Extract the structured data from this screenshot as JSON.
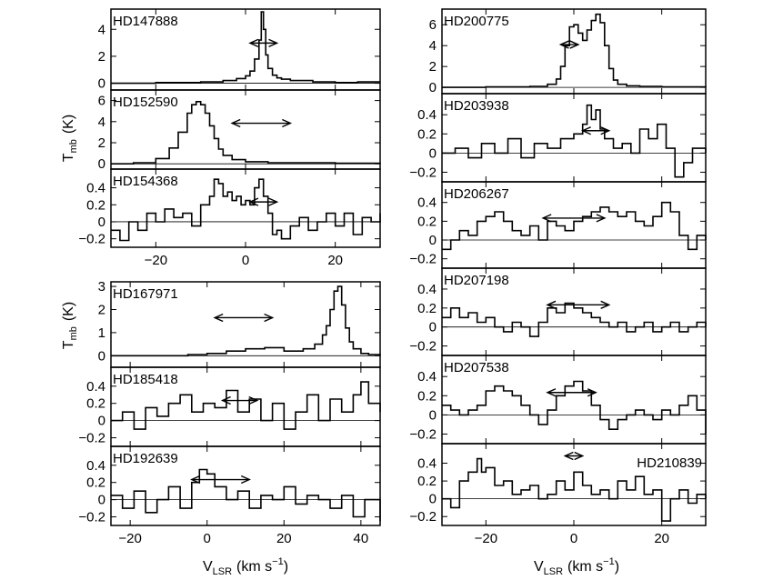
{
  "figure": {
    "left_ylabel_main": "T",
    "left_ylabel_sub": "mb",
    "left_ylabel_unit": "(K)",
    "xlabel_main": "V",
    "xlabel_sub": "LSR",
    "xlabel_unit_pre": "(km s",
    "xlabel_unit_exp": "−1",
    "xlabel_unit_post": ")"
  },
  "chart_data": [
    {
      "type": "line",
      "name": "HD147888",
      "xlim": [
        -30,
        30
      ],
      "ylim": [
        -0.5,
        5.5
      ],
      "yticks": [
        0,
        2,
        4
      ],
      "arrow": [
        1.0,
        7.0
      ],
      "x": [
        -30,
        -20,
        -10,
        -5,
        -2,
        0,
        1,
        2,
        3,
        3.5,
        4,
        4.5,
        5,
        6,
        7,
        8,
        10,
        15,
        20,
        25,
        30
      ],
      "values": [
        0.0,
        0.05,
        0.1,
        0.2,
        0.35,
        0.55,
        0.9,
        1.8,
        3.2,
        5.3,
        4.0,
        2.1,
        1.1,
        0.6,
        0.4,
        0.3,
        0.2,
        0.1,
        0.05,
        0.1,
        0.1
      ]
    },
    {
      "type": "line",
      "name": "HD152590",
      "xlim": [
        -30,
        30
      ],
      "ylim": [
        -0.5,
        7.0
      ],
      "yticks": [
        0,
        2,
        4,
        6
      ],
      "arrow": [
        -3.0,
        10.0
      ],
      "x": [
        -30,
        -25,
        -20,
        -17,
        -15,
        -13,
        -12,
        -11,
        -10,
        -9,
        -8,
        -7,
        -6,
        -5,
        -3,
        0,
        5,
        10,
        20,
        30
      ],
      "values": [
        0.0,
        0.1,
        0.5,
        1.5,
        3.0,
        4.8,
        5.6,
        5.9,
        5.6,
        4.8,
        3.6,
        2.4,
        1.4,
        0.8,
        0.4,
        0.2,
        0.1,
        0.1,
        0.05,
        0.1
      ]
    },
    {
      "type": "line",
      "name": "HD154368",
      "xlim": [
        -30,
        30
      ],
      "ylim": [
        -0.3,
        0.62
      ],
      "yticks": [
        -0.2,
        0,
        0.2,
        0.4
      ],
      "arrow": [
        1.0,
        7.0
      ],
      "x": [
        -30,
        -28,
        -26,
        -24,
        -22,
        -20,
        -18,
        -16,
        -14,
        -12,
        -10,
        -8,
        -7,
        -6,
        -5,
        -4,
        -3,
        -2,
        -1,
        0,
        1,
        2,
        3,
        4,
        5,
        6,
        7,
        8,
        10,
        12,
        14,
        16,
        18,
        20,
        22,
        24,
        26,
        28,
        30
      ],
      "values": [
        -0.1,
        -0.22,
        0.0,
        -0.1,
        0.1,
        0.0,
        0.15,
        0.05,
        0.1,
        -0.05,
        0.2,
        0.3,
        0.5,
        0.45,
        0.3,
        0.35,
        0.25,
        0.3,
        0.2,
        0.25,
        0.2,
        0.4,
        0.5,
        0.3,
        0.1,
        -0.15,
        -0.1,
        -0.2,
        -0.05,
        0.05,
        -0.1,
        0.0,
        0.1,
        -0.05,
        0.1,
        -0.15,
        0.05,
        0.0,
        0.1
      ]
    },
    {
      "type": "line",
      "name": "HD167971",
      "xlim": [
        -25,
        45
      ],
      "ylim": [
        -0.5,
        3.2
      ],
      "yticks": [
        0,
        1,
        2,
        3
      ],
      "arrow": [
        2.0,
        17.0
      ],
      "x": [
        -25,
        -15,
        -5,
        0,
        5,
        10,
        15,
        20,
        25,
        28,
        30,
        31,
        32,
        33,
        34,
        35,
        36,
        37,
        38,
        40,
        42,
        45
      ],
      "values": [
        0.0,
        0.0,
        0.05,
        0.1,
        0.2,
        0.3,
        0.35,
        0.2,
        0.3,
        0.5,
        0.9,
        1.3,
        2.0,
        2.8,
        3.0,
        2.2,
        1.2,
        0.6,
        0.3,
        0.1,
        0.05,
        0.0
      ]
    },
    {
      "type": "line",
      "name": "HD185418",
      "xlim": [
        -25,
        45
      ],
      "ylim": [
        -0.3,
        0.62
      ],
      "yticks": [
        -0.2,
        0,
        0.2,
        0.4
      ],
      "arrow": [
        4.0,
        13.0
      ],
      "x": [
        -25,
        -22,
        -19,
        -16,
        -13,
        -10,
        -7,
        -4,
        -1,
        2,
        5,
        8,
        11,
        14,
        17,
        20,
        23,
        26,
        29,
        32,
        35,
        38,
        40,
        42,
        45
      ],
      "values": [
        0.0,
        0.1,
        -0.1,
        0.15,
        0.05,
        0.2,
        0.3,
        0.1,
        0.2,
        0.15,
        0.35,
        0.1,
        0.25,
        0.0,
        0.2,
        -0.1,
        0.1,
        0.3,
        0.0,
        0.25,
        0.1,
        0.3,
        0.45,
        0.2,
        0.1
      ]
    },
    {
      "type": "line",
      "name": "HD192639",
      "xlim": [
        -25,
        45
      ],
      "ylim": [
        -0.3,
        0.62
      ],
      "yticks": [
        -0.2,
        0,
        0.2,
        0.4
      ],
      "arrow": [
        -4.0,
        11.0
      ],
      "x": [
        -25,
        -22,
        -19,
        -16,
        -13,
        -10,
        -7,
        -4,
        -2,
        0,
        2,
        5,
        8,
        11,
        14,
        17,
        20,
        23,
        26,
        29,
        32,
        35,
        38,
        41,
        45
      ],
      "values": [
        0.05,
        -0.1,
        0.1,
        -0.15,
        0.0,
        0.15,
        -0.1,
        0.2,
        0.35,
        0.3,
        0.15,
        0.0,
        0.1,
        -0.1,
        0.05,
        0.0,
        0.15,
        -0.05,
        0.05,
        0.0,
        -0.1,
        0.05,
        -0.2,
        0.0,
        -0.25
      ]
    },
    {
      "type": "line",
      "name": "HD200775",
      "xlim": [
        -30,
        30
      ],
      "ylim": [
        -0.6,
        7.5
      ],
      "yticks": [
        0,
        2,
        4,
        6
      ],
      "arrow": [
        -3.0,
        1.0
      ],
      "x": [
        -30,
        -20,
        -10,
        -6,
        -4,
        -3,
        -2,
        -1,
        0,
        1,
        2,
        3,
        4,
        5,
        6,
        7,
        8,
        9,
        10,
        12,
        15,
        20,
        25,
        30
      ],
      "values": [
        0.0,
        0.05,
        0.1,
        0.3,
        0.8,
        2.0,
        4.0,
        5.8,
        6.0,
        5.2,
        4.5,
        5.5,
        6.4,
        7.0,
        6.2,
        4.0,
        1.8,
        0.7,
        0.3,
        0.15,
        0.1,
        0.05,
        0.05,
        0.0
      ]
    },
    {
      "type": "line",
      "name": "HD203938",
      "xlim": [
        -30,
        30
      ],
      "ylim": [
        -0.3,
        0.62
      ],
      "yticks": [
        -0.2,
        0,
        0.2,
        0.4
      ],
      "arrow": [
        2.0,
        8.0
      ],
      "x": [
        -30,
        -27,
        -24,
        -21,
        -18,
        -15,
        -12,
        -9,
        -6,
        -3,
        0,
        2,
        3,
        4,
        5,
        6,
        7,
        9,
        11,
        13,
        15,
        17,
        19,
        21,
        23,
        25,
        27,
        30
      ],
      "values": [
        0.0,
        0.05,
        -0.05,
        0.1,
        0.0,
        0.15,
        -0.05,
        0.1,
        0.05,
        0.15,
        0.2,
        0.3,
        0.5,
        0.35,
        0.45,
        0.25,
        0.15,
        0.05,
        0.1,
        0.0,
        0.25,
        0.15,
        0.3,
        0.05,
        -0.25,
        -0.1,
        0.05,
        0.0
      ]
    },
    {
      "type": "line",
      "name": "HD206267",
      "xlim": [
        -30,
        30
      ],
      "ylim": [
        -0.3,
        0.62
      ],
      "yticks": [
        -0.2,
        0,
        0.2,
        0.4
      ],
      "arrow": [
        -7.0,
        7.0
      ],
      "x": [
        -30,
        -28,
        -26,
        -24,
        -22,
        -20,
        -18,
        -16,
        -14,
        -12,
        -10,
        -8,
        -6,
        -4,
        -2,
        0,
        2,
        4,
        6,
        8,
        10,
        12,
        14,
        16,
        18,
        20,
        22,
        24,
        26,
        28,
        30
      ],
      "values": [
        -0.1,
        0.0,
        0.1,
        0.05,
        0.2,
        0.25,
        0.3,
        0.2,
        0.1,
        0.05,
        0.15,
        0.0,
        0.2,
        0.15,
        0.1,
        0.2,
        0.25,
        0.3,
        0.35,
        0.3,
        0.25,
        0.3,
        0.2,
        0.15,
        0.25,
        0.4,
        0.3,
        0.05,
        -0.1,
        0.05,
        0.0
      ]
    },
    {
      "type": "line",
      "name": "HD207198",
      "xlim": [
        -30,
        30
      ],
      "ylim": [
        -0.3,
        0.62
      ],
      "yticks": [
        -0.2,
        0,
        0.2,
        0.4
      ],
      "arrow": [
        -6.0,
        8.0
      ],
      "x": [
        -30,
        -28,
        -26,
        -24,
        -22,
        -20,
        -18,
        -16,
        -14,
        -12,
        -10,
        -8,
        -6,
        -4,
        -2,
        0,
        2,
        4,
        6,
        8,
        10,
        12,
        14,
        16,
        18,
        20,
        22,
        24,
        26,
        28,
        30
      ],
      "values": [
        0.1,
        0.2,
        0.1,
        0.15,
        0.05,
        0.1,
        0.0,
        -0.05,
        0.05,
        0.0,
        -0.1,
        0.05,
        0.2,
        0.15,
        0.25,
        0.2,
        0.15,
        0.1,
        0.05,
        0.0,
        0.05,
        -0.05,
        0.0,
        0.05,
        -0.05,
        0.0,
        0.05,
        -0.05,
        0.0,
        0.05,
        0.0
      ]
    },
    {
      "type": "line",
      "name": "HD207538",
      "xlim": [
        -30,
        30
      ],
      "ylim": [
        -0.3,
        0.62
      ],
      "yticks": [
        -0.2,
        0,
        0.2,
        0.4
      ],
      "arrow": [
        -6.0,
        5.0
      ],
      "x": [
        -30,
        -28,
        -26,
        -24,
        -22,
        -20,
        -18,
        -16,
        -14,
        -12,
        -10,
        -8,
        -6,
        -4,
        -2,
        0,
        2,
        4,
        6,
        8,
        10,
        12,
        14,
        16,
        18,
        20,
        22,
        24,
        26,
        28,
        30
      ],
      "values": [
        0.1,
        0.05,
        0.0,
        0.05,
        0.1,
        0.25,
        0.3,
        0.25,
        0.2,
        0.1,
        0.0,
        -0.1,
        0.05,
        0.2,
        0.3,
        0.35,
        0.25,
        0.1,
        -0.05,
        -0.15,
        -0.05,
        0.0,
        0.05,
        0.0,
        -0.05,
        0.05,
        0.0,
        0.1,
        0.2,
        0.05,
        -0.2
      ]
    },
    {
      "type": "line",
      "name": "HD210839",
      "xlim": [
        -30,
        30
      ],
      "ylim": [
        -0.3,
        0.62
      ],
      "yticks": [
        -0.2,
        0,
        0.2,
        0.4
      ],
      "arrow": [
        -2.0,
        2.0
      ],
      "x": [
        -30,
        -28,
        -26,
        -24,
        -22,
        -21,
        -20,
        -18,
        -16,
        -14,
        -12,
        -10,
        -8,
        -6,
        -4,
        -2,
        0,
        2,
        4,
        6,
        8,
        10,
        12,
        14,
        16,
        18,
        20,
        22,
        24,
        26,
        28,
        30
      ],
      "values": [
        0.0,
        -0.1,
        0.2,
        0.3,
        0.45,
        0.3,
        0.35,
        0.15,
        0.2,
        0.05,
        0.1,
        0.15,
        0.0,
        0.05,
        0.2,
        0.1,
        0.3,
        0.15,
        0.05,
        0.1,
        0.0,
        0.2,
        0.1,
        0.25,
        0.05,
        0.1,
        -0.25,
        0.0,
        0.1,
        -0.05,
        0.05,
        0.0
      ]
    }
  ],
  "xaxes": {
    "left_top": {
      "xlim": [
        -30,
        30
      ],
      "ticks": [
        -20,
        0,
        20
      ]
    },
    "left_bottom": {
      "xlim": [
        -25,
        45
      ],
      "ticks": [
        -20,
        0,
        20,
        40
      ]
    },
    "right": {
      "xlim": [
        -30,
        30
      ],
      "ticks": [
        -20,
        0,
        20
      ]
    }
  }
}
